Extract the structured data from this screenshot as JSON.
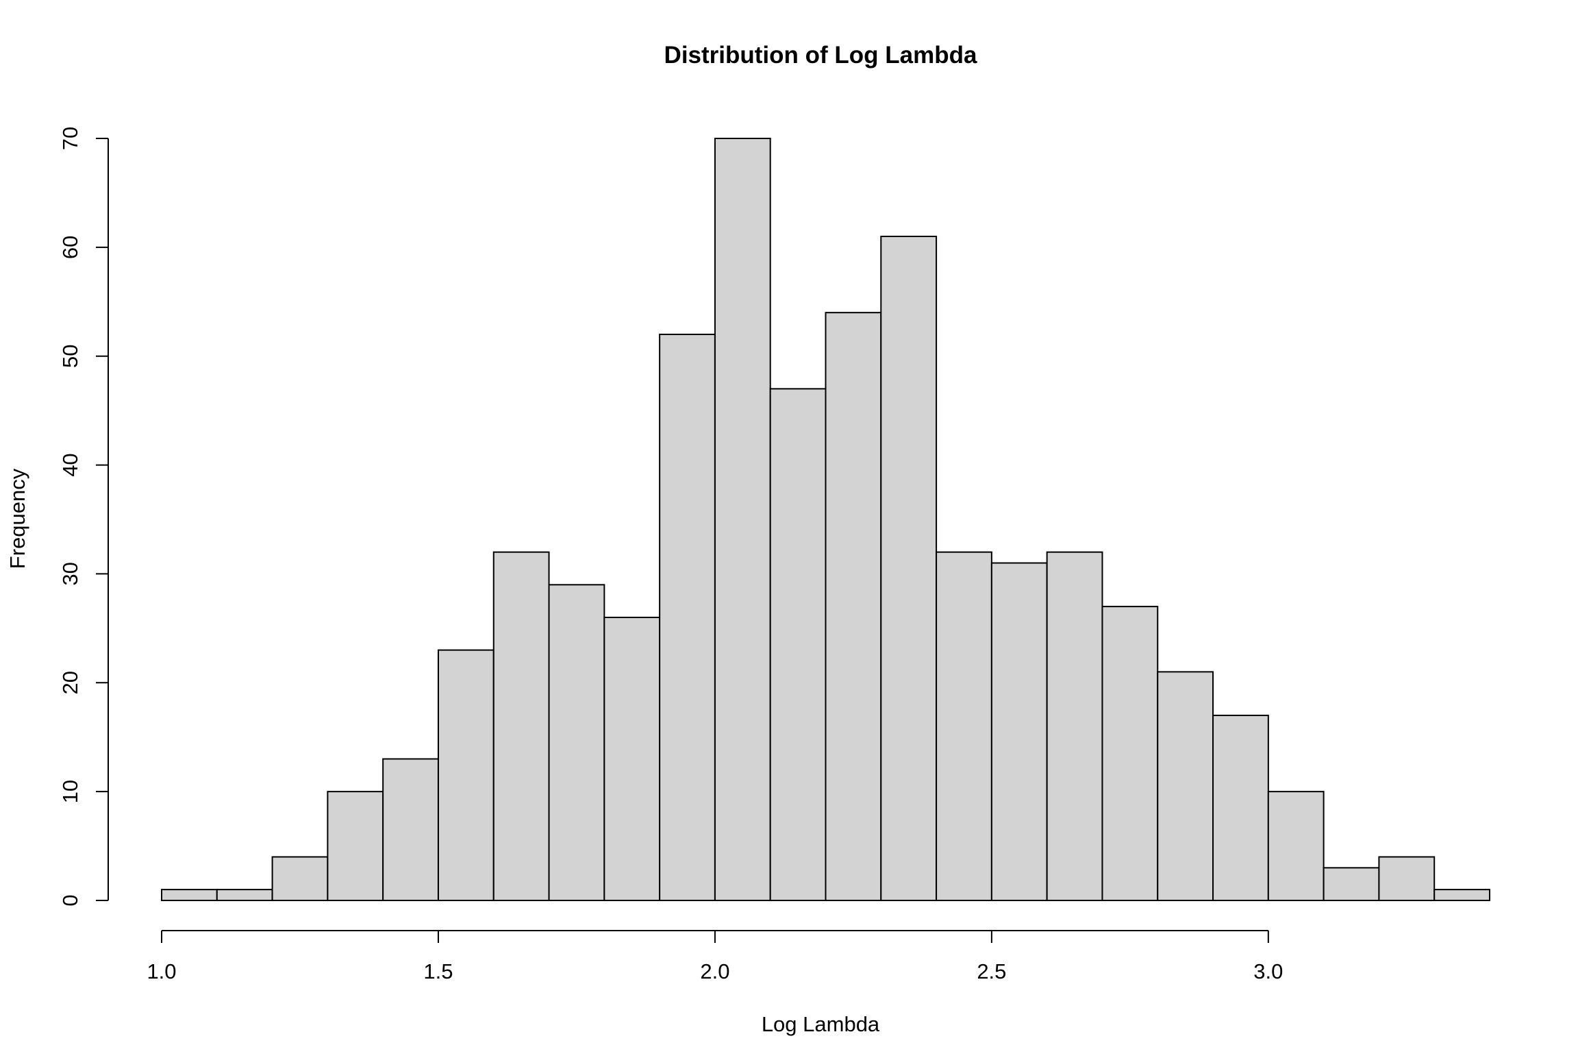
{
  "chart_data": {
    "type": "bar",
    "histogram": true,
    "title": "Distribution of Log Lambda",
    "xlabel": "Log Lambda",
    "ylabel": "Frequency",
    "bins": [
      {
        "x0": 1.0,
        "x1": 1.1,
        "count": 1
      },
      {
        "x0": 1.1,
        "x1": 1.2,
        "count": 1
      },
      {
        "x0": 1.2,
        "x1": 1.3,
        "count": 4
      },
      {
        "x0": 1.3,
        "x1": 1.4,
        "count": 10
      },
      {
        "x0": 1.4,
        "x1": 1.5,
        "count": 13
      },
      {
        "x0": 1.5,
        "x1": 1.6,
        "count": 23
      },
      {
        "x0": 1.6,
        "x1": 1.7,
        "count": 32
      },
      {
        "x0": 1.7,
        "x1": 1.8,
        "count": 29
      },
      {
        "x0": 1.8,
        "x1": 1.9,
        "count": 26
      },
      {
        "x0": 1.9,
        "x1": 2.0,
        "count": 52
      },
      {
        "x0": 2.0,
        "x1": 2.1,
        "count": 70
      },
      {
        "x0": 2.1,
        "x1": 2.2,
        "count": 47
      },
      {
        "x0": 2.2,
        "x1": 2.3,
        "count": 54
      },
      {
        "x0": 2.3,
        "x1": 2.4,
        "count": 61
      },
      {
        "x0": 2.4,
        "x1": 2.5,
        "count": 32
      },
      {
        "x0": 2.5,
        "x1": 2.6,
        "count": 31
      },
      {
        "x0": 2.6,
        "x1": 2.7,
        "count": 32
      },
      {
        "x0": 2.7,
        "x1": 2.8,
        "count": 27
      },
      {
        "x0": 2.8,
        "x1": 2.9,
        "count": 21
      },
      {
        "x0": 2.9,
        "x1": 3.0,
        "count": 17
      },
      {
        "x0": 3.0,
        "x1": 3.1,
        "count": 10
      },
      {
        "x0": 3.1,
        "x1": 3.2,
        "count": 3
      },
      {
        "x0": 3.2,
        "x1": 3.3,
        "count": 4
      },
      {
        "x0": 3.3,
        "x1": 3.4,
        "count": 1
      }
    ],
    "xlim": [
      1.0,
      3.4
    ],
    "ylim": [
      0,
      70
    ],
    "xticks": [
      1.0,
      1.5,
      2.0,
      2.5,
      3.0
    ],
    "xtick_labels": [
      "1.0",
      "1.5",
      "2.0",
      "2.5",
      "3.0"
    ],
    "yticks": [
      0,
      10,
      20,
      30,
      40,
      50,
      60,
      70
    ],
    "ytick_labels": [
      "0",
      "10",
      "20",
      "30",
      "40",
      "50",
      "60",
      "70"
    ],
    "grid": false,
    "legend": "none",
    "colors": {
      "bar_fill": "#d3d3d3",
      "bar_stroke": "#000000",
      "background": "#ffffff"
    }
  }
}
